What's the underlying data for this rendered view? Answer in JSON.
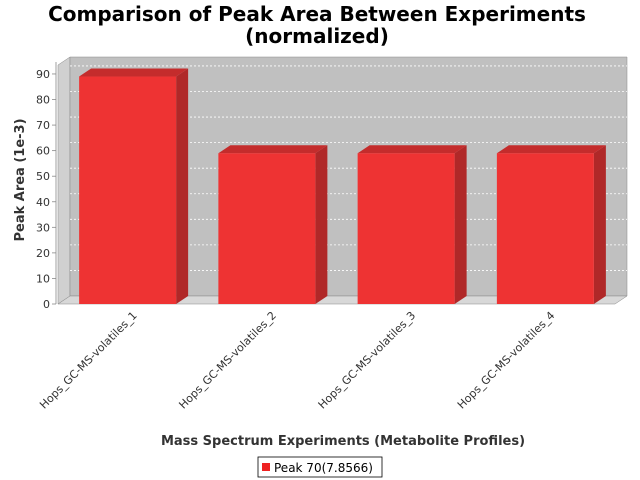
{
  "chart_data": {
    "type": "bar",
    "title_line1": "Comparison of Peak Area Between Experiments",
    "title_line2": "(normalized)",
    "xlabel": "Mass Spectrum Experiments (Metabolite Profiles)",
    "ylabel": "Peak Area (1e-3)",
    "categories": [
      "Hops_GC-MS-volatiles_1",
      "Hops_GC-MS-volatiles_2",
      "Hops_GC-MS-volatiles_3",
      "Hops_GC-MS-volatiles_4"
    ],
    "series": [
      {
        "name": "Peak 70(7.8566)",
        "values": [
          89,
          59,
          59,
          59
        ]
      }
    ],
    "ylim": [
      0,
      95
    ],
    "yticks": [
      0,
      10,
      20,
      30,
      40,
      50,
      60,
      70,
      80,
      90
    ],
    "grid": true,
    "legend_position": "bottom",
    "colors": {
      "bar_front": "#ee3333",
      "bar_side": "#b02828",
      "bar_top": "#c42c2c",
      "plot_back": "#c0c0c0",
      "plot_floor": "#d8d8d8",
      "plot_wall": "#d0d0d0"
    }
  }
}
